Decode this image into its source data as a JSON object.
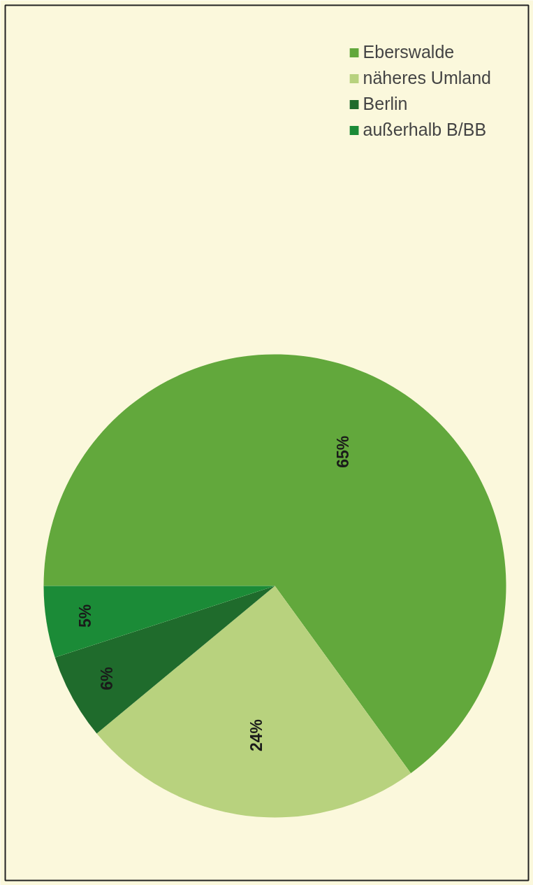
{
  "chart_data": {
    "type": "pie",
    "categories": [
      "Eberswalde",
      "näheres Umland",
      "Berlin",
      "außerhalb B/BB"
    ],
    "values": [
      65,
      24,
      6,
      5
    ],
    "colors": [
      "#62a83c",
      "#b8d27e",
      "#1f6b2c",
      "#1b8b37"
    ],
    "value_labels": [
      "65%",
      "24%",
      "6%",
      "5%"
    ],
    "legend": "top right"
  }
}
